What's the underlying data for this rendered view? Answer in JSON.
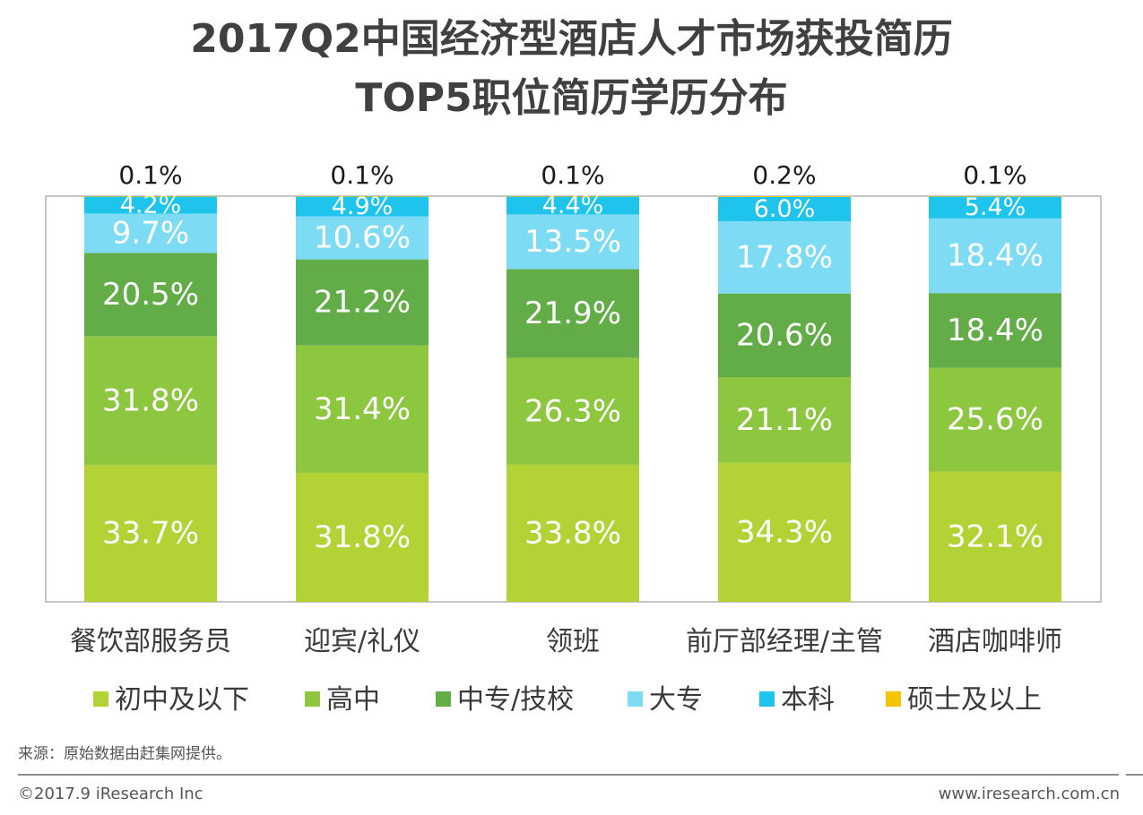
{
  "title_line1": "2017Q2中国经济型酒店人才市场获投简历",
  "title_line2": "TOP5职位简历学历分布",
  "chart_data": {
    "type": "bar",
    "stacked": true,
    "percent": true,
    "categories": [
      "餐饮部服务员",
      "迎宾/礼仪",
      "领班",
      "前厅部经理/主管",
      "酒店咖啡师"
    ],
    "series": [
      {
        "name": "初中及以下",
        "color": "#b2d235",
        "values": [
          33.7,
          31.8,
          33.8,
          34.3,
          32.1
        ],
        "labels": [
          "33.7%",
          "31.8%",
          "33.8%",
          "34.3%",
          "32.1%"
        ]
      },
      {
        "name": "高中",
        "color": "#8dc63f",
        "values": [
          31.8,
          31.4,
          26.3,
          21.1,
          25.6
        ],
        "labels": [
          "31.8%",
          "31.4%",
          "26.3%",
          "21.1%",
          "25.6%"
        ]
      },
      {
        "name": "中专/技校",
        "color": "#62ad47",
        "values": [
          20.5,
          21.2,
          21.9,
          20.6,
          18.4
        ],
        "labels": [
          "20.5%",
          "21.2%",
          "21.9%",
          "20.6%",
          "18.4%"
        ]
      },
      {
        "name": "大专",
        "color": "#7ddcf4",
        "values": [
          9.7,
          10.6,
          13.5,
          17.8,
          18.4
        ],
        "labels": [
          "9.7%",
          "10.6%",
          "13.5%",
          "17.8%",
          "18.4%"
        ]
      },
      {
        "name": "本科",
        "color": "#1fc4ec",
        "values": [
          4.2,
          4.9,
          4.4,
          6.0,
          5.4
        ],
        "labels": [
          "4.2%",
          "4.9%",
          "4.4%",
          "6.0%",
          "5.4%"
        ]
      },
      {
        "name": "硕士及以上",
        "color": "#f5c400",
        "values": [
          0.1,
          0.1,
          0.1,
          0.2,
          0.1
        ],
        "labels": [
          "0.1%",
          "0.1%",
          "0.1%",
          "0.2%",
          "0.1%"
        ]
      }
    ],
    "ylim": [
      0,
      100
    ]
  },
  "source": "来源：原始数据由赶集网提供。",
  "footer_left": "©2017.9 iResearch Inc",
  "footer_right": "www.iresearch.com.cn"
}
